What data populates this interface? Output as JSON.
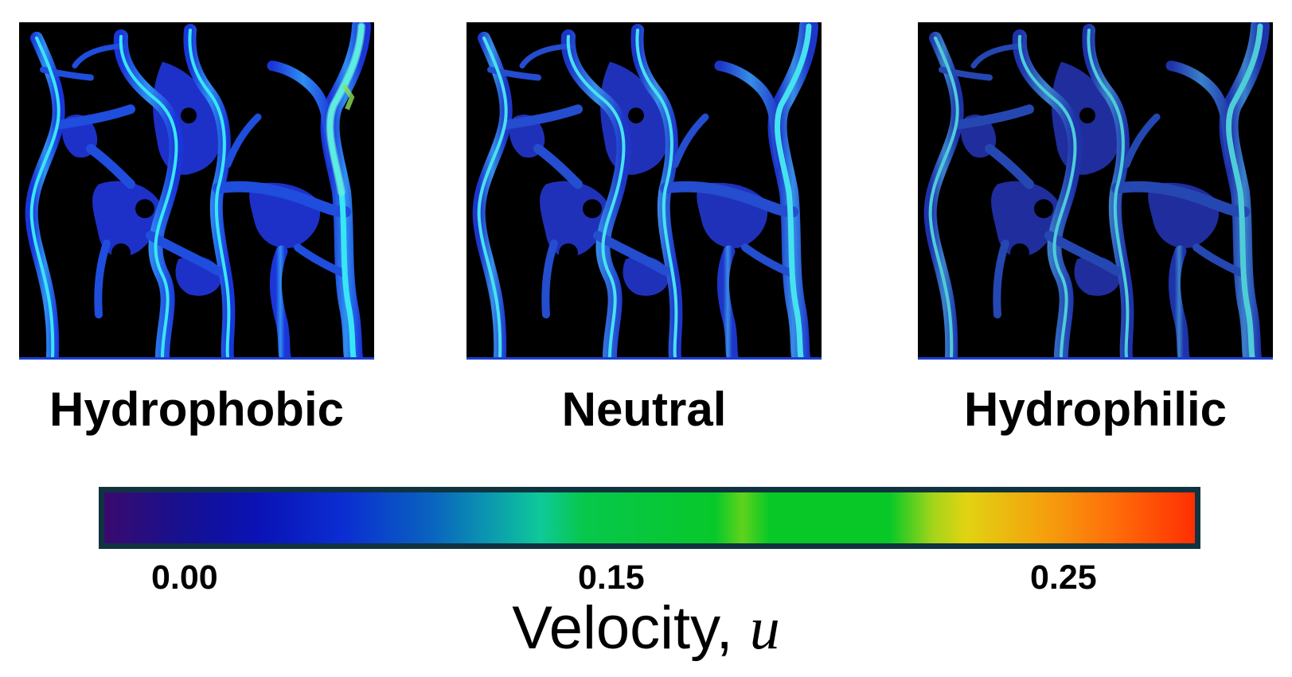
{
  "panels": [
    {
      "label": "Hydrophobic",
      "intensity": "high"
    },
    {
      "label": "Neutral",
      "intensity": "medium"
    },
    {
      "label": "Hydrophilic",
      "intensity": "low"
    }
  ],
  "colorbar": {
    "title_text": "Velocity, ",
    "title_variable": "u",
    "tick_labels": [
      "0.00",
      "0.15",
      "0.25"
    ],
    "colormap": [
      "#3a0a6e",
      "#0a12b5",
      "#0a63bf",
      "#0ec99a",
      "#07c826",
      "#e1d312",
      "#ff6a09",
      "#ff2f04"
    ]
  },
  "colors": {
    "background": "#000000",
    "channel_low": "#1a35d8",
    "channel_mid": "#2f8ef2",
    "channel_high": "#39e6f5",
    "colorbar_border": "#113340"
  }
}
